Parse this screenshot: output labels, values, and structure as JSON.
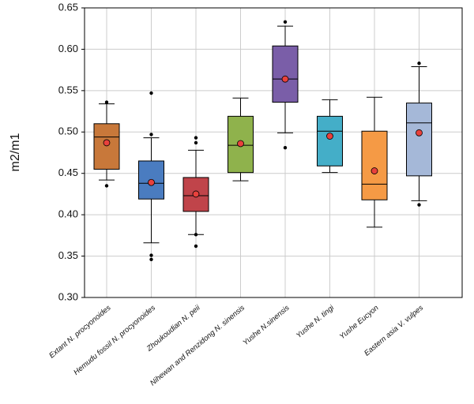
{
  "chart_data": {
    "type": "box",
    "y_label": "m2/m1",
    "categories": [
      "Extant N. procyonoides",
      "Hemudu fossil N. procyonoides",
      "Zhoukoudian N. peii",
      "Nihewan and Renzidong N. sinensis",
      "Yushe N.sinensis",
      "Yushe N. tingi",
      "Yushe Eucyon",
      "Eastern asia V. vulpes"
    ],
    "boxes": [
      {
        "color": "#c8783a",
        "whislo": 0.442,
        "q1": 0.455,
        "median": 0.494,
        "q3": 0.51,
        "whishi": 0.534,
        "mean": 0.487,
        "outliers": [
          0.536,
          0.435
        ]
      },
      {
        "color": "#4a7cc0",
        "whislo": 0.366,
        "q1": 0.419,
        "median": 0.438,
        "q3": 0.465,
        "whishi": 0.493,
        "mean": 0.439,
        "outliers": [
          0.547,
          0.497,
          0.351,
          0.346
        ]
      },
      {
        "color": "#c0444a",
        "whislo": 0.376,
        "q1": 0.404,
        "median": 0.423,
        "q3": 0.445,
        "whishi": 0.478,
        "mean": 0.425,
        "outliers": [
          0.493,
          0.487,
          0.376,
          0.362
        ]
      },
      {
        "color": "#8fb24c",
        "whislo": 0.441,
        "q1": 0.451,
        "median": 0.484,
        "q3": 0.519,
        "whishi": 0.541,
        "mean": 0.486,
        "outliers": []
      },
      {
        "color": "#7a5ea8",
        "whislo": 0.499,
        "q1": 0.536,
        "median": 0.564,
        "q3": 0.604,
        "whishi": 0.628,
        "mean": 0.564,
        "outliers": [
          0.633,
          0.481
        ]
      },
      {
        "color": "#44aec8",
        "whislo": 0.451,
        "q1": 0.459,
        "median": 0.501,
        "q3": 0.519,
        "whishi": 0.539,
        "mean": 0.495,
        "outliers": []
      },
      {
        "color": "#f59a45",
        "whislo": 0.385,
        "q1": 0.418,
        "median": 0.437,
        "q3": 0.501,
        "whishi": 0.542,
        "mean": 0.453,
        "outliers": []
      },
      {
        "color": "#a5b8d8",
        "whislo": 0.417,
        "q1": 0.447,
        "median": 0.511,
        "q3": 0.535,
        "whishi": 0.579,
        "mean": 0.499,
        "outliers": [
          0.583,
          0.412
        ]
      }
    ],
    "mean_color": "#e8413c",
    "ylim": [
      0.3,
      0.65
    ],
    "yticks": [
      {
        "value": 0.3,
        "label": "0.30"
      },
      0.35,
      {
        "value": 0.4,
        "label": "0.40"
      },
      0.45,
      {
        "value": 0.5,
        "label": "0.50"
      },
      0.55,
      {
        "value": 0.6,
        "label": "0.60"
      },
      0.65
    ],
    "grid": true
  }
}
